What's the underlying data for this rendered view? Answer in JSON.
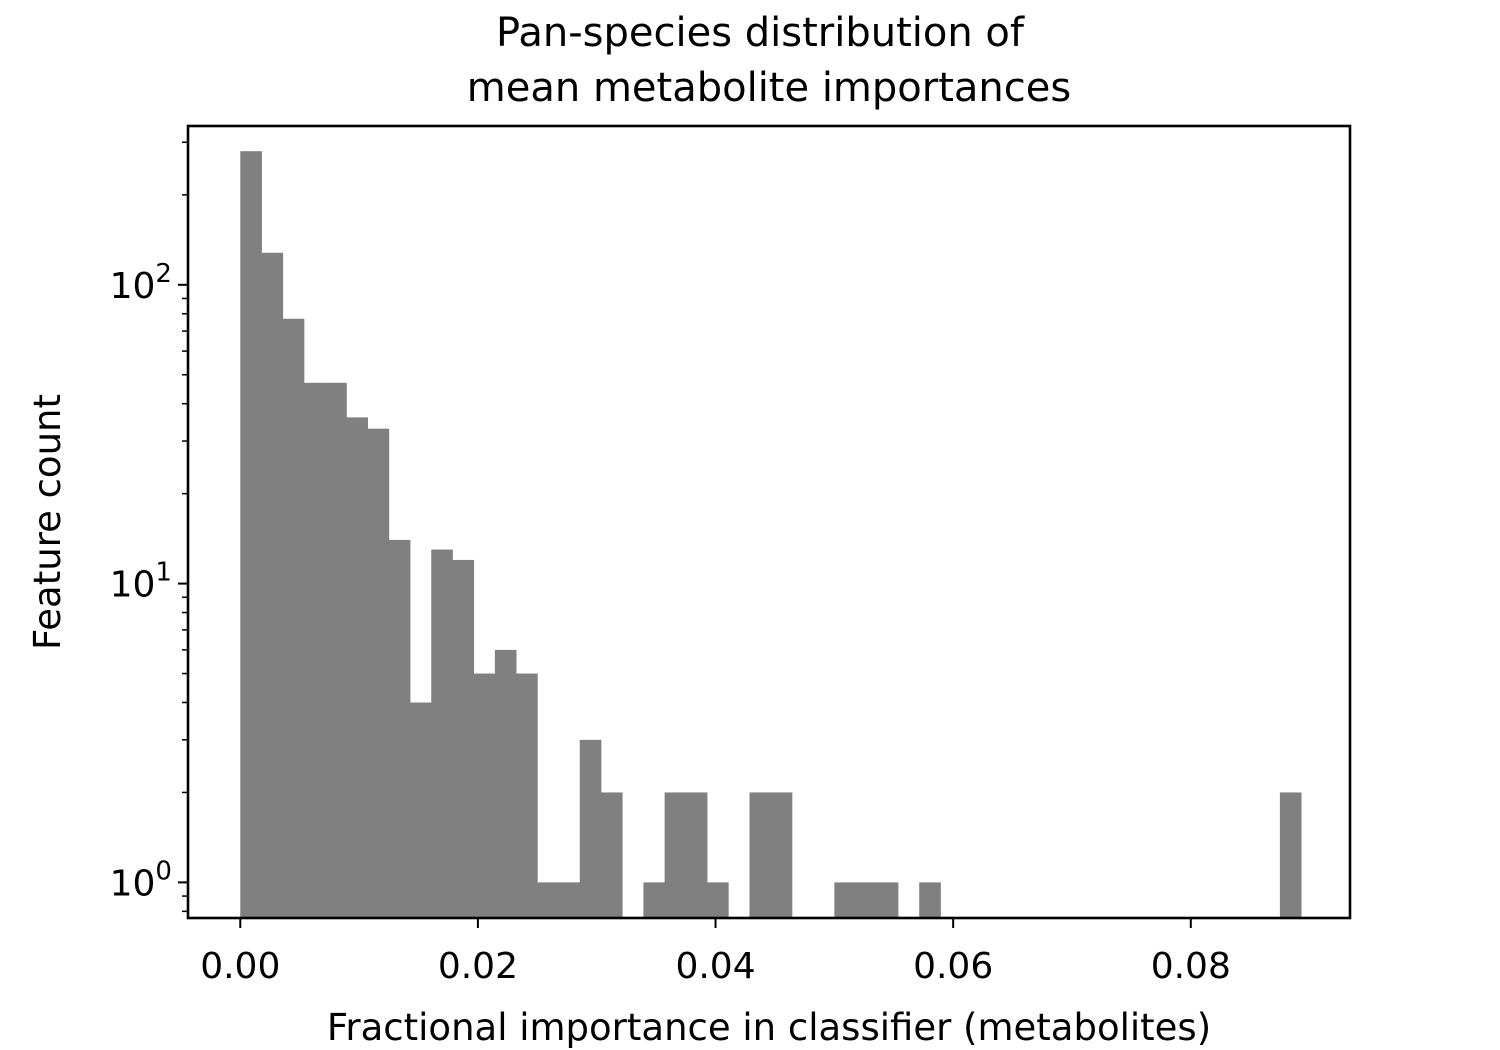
{
  "chart_data": {
    "type": "bar",
    "title_lines": [
      "Pan-species distribution of",
      "mean metabolite importances"
    ],
    "xlabel": "Fractional importance in classifier (metabolites)",
    "ylabel": "Feature count",
    "y_scale": "log",
    "xlim": [
      -0.0044,
      0.0934
    ],
    "ylim": [
      0.76,
      340
    ],
    "grid": false,
    "bar_color": "#808080",
    "bin_width": 0.0017857,
    "x_ticks": [
      {
        "value": 0.0,
        "label": "0.00"
      },
      {
        "value": 0.02,
        "label": "0.02"
      },
      {
        "value": 0.04,
        "label": "0.04"
      },
      {
        "value": 0.06,
        "label": "0.06"
      },
      {
        "value": 0.08,
        "label": "0.08"
      }
    ],
    "y_ticks": [
      {
        "value": 1,
        "base": "10",
        "exp": "0"
      },
      {
        "value": 10,
        "base": "10",
        "exp": "1"
      },
      {
        "value": 100,
        "base": "10",
        "exp": "2"
      }
    ],
    "bins": [
      {
        "x": 0.0,
        "count": 280
      },
      {
        "x": 0.0017857,
        "count": 128
      },
      {
        "x": 0.0035714,
        "count": 77
      },
      {
        "x": 0.0053571,
        "count": 47
      },
      {
        "x": 0.0071429,
        "count": 47
      },
      {
        "x": 0.0089286,
        "count": 36
      },
      {
        "x": 0.0107143,
        "count": 33
      },
      {
        "x": 0.0125,
        "count": 14
      },
      {
        "x": 0.0142857,
        "count": 4
      },
      {
        "x": 0.0160714,
        "count": 13
      },
      {
        "x": 0.0178571,
        "count": 12
      },
      {
        "x": 0.0196429,
        "count": 5
      },
      {
        "x": 0.0214286,
        "count": 6
      },
      {
        "x": 0.0232143,
        "count": 5
      },
      {
        "x": 0.025,
        "count": 1
      },
      {
        "x": 0.0267857,
        "count": 1
      },
      {
        "x": 0.0285714,
        "count": 3
      },
      {
        "x": 0.0303571,
        "count": 2
      },
      {
        "x": 0.0339286,
        "count": 1
      },
      {
        "x": 0.0357143,
        "count": 2
      },
      {
        "x": 0.0375,
        "count": 2
      },
      {
        "x": 0.0392857,
        "count": 1
      },
      {
        "x": 0.0428571,
        "count": 2
      },
      {
        "x": 0.0446429,
        "count": 2
      },
      {
        "x": 0.05,
        "count": 1
      },
      {
        "x": 0.0517857,
        "count": 1
      },
      {
        "x": 0.0535714,
        "count": 1
      },
      {
        "x": 0.0571429,
        "count": 1
      },
      {
        "x": 0.0875,
        "count": 2
      }
    ]
  }
}
